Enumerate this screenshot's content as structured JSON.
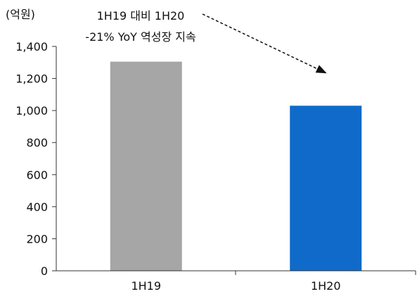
{
  "chart_data": {
    "type": "bar",
    "unit_label": "(억원)",
    "categories": [
      "1H19",
      "1H20"
    ],
    "values": [
      1305,
      1030
    ],
    "bar_colors": [
      "#a6a6a6",
      "#0f6ac9"
    ],
    "ylim": [
      0,
      1400
    ],
    "yticks": [
      0,
      200,
      400,
      600,
      800,
      1000,
      1200,
      1400
    ],
    "ytick_labels": [
      "0",
      "200",
      "400",
      "600",
      "800",
      "1,000",
      "1,200",
      "1,400"
    ],
    "annotation": {
      "line1": "1H19 대비 1H20",
      "line2": "-21% YoY 역성장 지속"
    },
    "grid": false,
    "legend": "none"
  }
}
